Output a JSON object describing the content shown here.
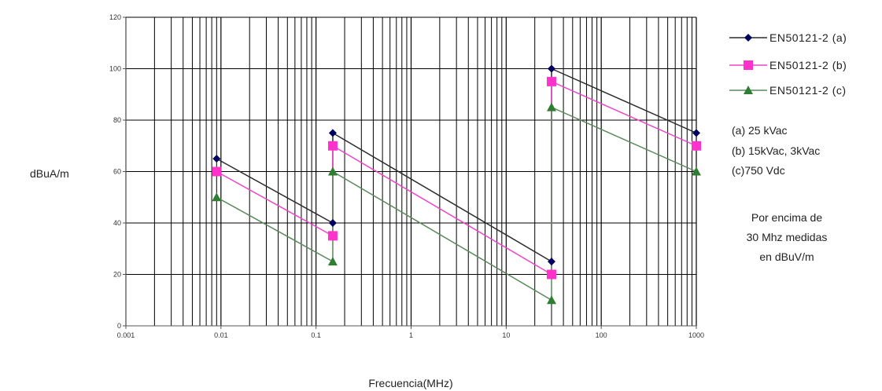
{
  "chart_data": {
    "type": "line",
    "x_scale": "log",
    "xlabel": "Frecuencia(MHz)",
    "ylabel": "dBuA/m",
    "xlim": [
      0.001,
      1000
    ],
    "ylim": [
      0,
      120
    ],
    "x_ticks": [
      0.001,
      0.01,
      0.1,
      1,
      10,
      100,
      1000
    ],
    "x_tick_labels": [
      "0.001",
      "0.01",
      "0.1",
      "1",
      "10",
      "100",
      "1000"
    ],
    "y_ticks": [
      0,
      20,
      40,
      60,
      80,
      100,
      120
    ],
    "y_tick_labels": [
      "0",
      "20",
      "40",
      "60",
      "80",
      "100",
      "120"
    ],
    "grid": true,
    "legend_position": "right",
    "series": [
      {
        "name": "EN50121-2  (a)",
        "color": "#000060",
        "line_color": "#2b2b2b",
        "marker": "diamond",
        "segments": [
          [
            [
              0.009,
              65
            ],
            [
              0.15,
              40
            ]
          ],
          [
            [
              0.15,
              40
            ],
            [
              0.15,
              75
            ]
          ],
          [
            [
              0.15,
              75
            ],
            [
              30,
              25
            ]
          ],
          [
            [
              30,
              25
            ],
            [
              30,
              100
            ]
          ],
          [
            [
              30,
              100
            ],
            [
              1000,
              75
            ]
          ]
        ],
        "points": [
          [
            0.009,
            65
          ],
          [
            0.15,
            40
          ],
          [
            0.15,
            75
          ],
          [
            30,
            25
          ],
          [
            30,
            100
          ],
          [
            1000,
            75
          ]
        ]
      },
      {
        "name": "EN50121-2  (b)",
        "color": "#ff33cc",
        "line_color": "#ee44cc",
        "marker": "square",
        "segments": [
          [
            [
              0.009,
              60
            ],
            [
              0.15,
              35
            ]
          ],
          [
            [
              0.15,
              35
            ],
            [
              0.15,
              70
            ]
          ],
          [
            [
              0.15,
              70
            ],
            [
              30,
              20
            ]
          ],
          [
            [
              30,
              20
            ],
            [
              30,
              95
            ]
          ],
          [
            [
              30,
              95
            ],
            [
              1000,
              70
            ]
          ]
        ],
        "points": [
          [
            0.009,
            60
          ],
          [
            0.15,
            35
          ],
          [
            0.15,
            70
          ],
          [
            30,
            20
          ],
          [
            30,
            95
          ],
          [
            1000,
            70
          ]
        ]
      },
      {
        "name": "EN50121-2  (c)",
        "color": "#2e7d32",
        "line_color": "#5a8a5a",
        "marker": "triangle",
        "segments": [
          [
            [
              0.009,
              50
            ],
            [
              0.15,
              25
            ]
          ],
          [
            [
              0.15,
              25
            ],
            [
              0.15,
              60
            ]
          ],
          [
            [
              0.15,
              60
            ],
            [
              30,
              10
            ]
          ],
          [
            [
              30,
              10
            ],
            [
              30,
              85
            ]
          ],
          [
            [
              30,
              85
            ],
            [
              1000,
              60
            ]
          ]
        ],
        "points": [
          [
            0.009,
            50
          ],
          [
            0.15,
            25
          ],
          [
            0.15,
            60
          ],
          [
            30,
            10
          ],
          [
            30,
            85
          ],
          [
            1000,
            60
          ]
        ]
      }
    ],
    "notes": {
      "voltages": [
        "(a) 25 kVac",
        "(b) 15kVac, 3kVac",
        "(c)750 Vdc"
      ],
      "measurement": [
        "Por encima de",
        "30 Mhz medidas",
        "en dBuV/m"
      ]
    }
  }
}
